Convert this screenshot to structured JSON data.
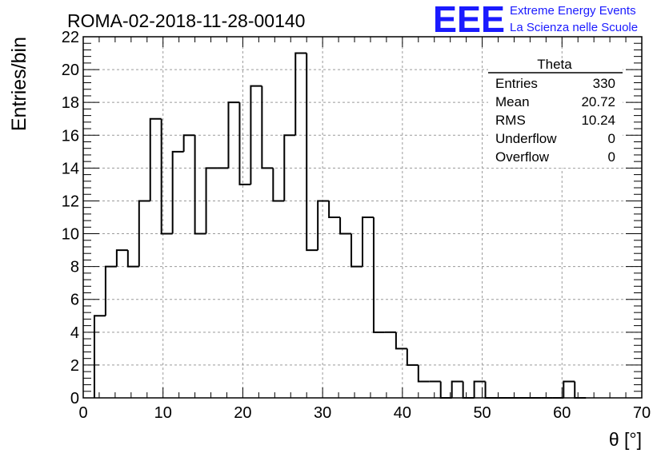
{
  "colors": {
    "logo": "#1a1aff",
    "histogram": "#000000",
    "grid": "#9a9a9a"
  },
  "logo": {
    "mark": "EEE",
    "line1": "Extreme Energy Events",
    "line2": "La Scienza nelle Scuole"
  },
  "chart_data": {
    "type": "histogram",
    "title": "ROMA-02-2018-11-28-00140",
    "xlabel": "θ [°]",
    "ylabel": "Entries/bin",
    "xlim": [
      0,
      70
    ],
    "ylim": [
      0,
      22
    ],
    "grid": true,
    "x_ticks": [
      "0",
      "10",
      "20",
      "30",
      "40",
      "50",
      "60",
      "70"
    ],
    "y_ticks": [
      "0",
      "2",
      "4",
      "6",
      "8",
      "10",
      "12",
      "14",
      "16",
      "18",
      "20",
      "22"
    ],
    "bin_width": 1.4,
    "bin_starts": [
      1.4,
      2.8,
      4.2,
      5.6,
      7.0,
      8.4,
      9.8,
      11.2,
      12.6,
      14.0,
      15.4,
      16.8,
      18.2,
      19.6,
      21.0,
      22.4,
      23.8,
      25.2,
      26.6,
      28.0,
      29.4,
      30.8,
      32.2,
      33.6,
      35.0,
      36.4,
      37.8,
      39.2,
      40.6,
      42.0,
      43.4,
      44.8,
      46.2,
      47.6,
      49.0,
      50.4,
      51.8,
      53.2,
      54.6,
      56.0,
      57.4,
      58.8,
      60.2,
      61.6
    ],
    "values": [
      5,
      8,
      9,
      8,
      12,
      17,
      10,
      15,
      16,
      10,
      14,
      14,
      18,
      13,
      19,
      14,
      12,
      16,
      21,
      9,
      12,
      11,
      10,
      8,
      11,
      4,
      4,
      3,
      2,
      1,
      1,
      0,
      1,
      0,
      1,
      0,
      0,
      0,
      0,
      0,
      0,
      0,
      1,
      0
    ],
    "stats": {
      "name": "Theta",
      "rows": [
        {
          "label": "Entries",
          "value": "330"
        },
        {
          "label": "Mean",
          "value": "20.72"
        },
        {
          "label": "RMS",
          "value": "10.24"
        },
        {
          "label": "Underflow",
          "value": "0"
        },
        {
          "label": "Overflow",
          "value": "0"
        }
      ]
    }
  }
}
